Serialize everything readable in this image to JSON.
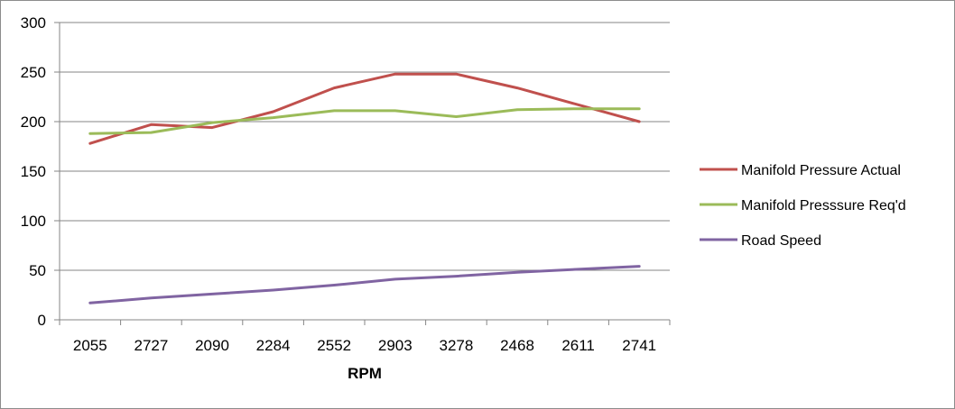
{
  "chart_data": {
    "type": "line",
    "title": "",
    "xlabel": "RPM",
    "ylabel": "",
    "categories": [
      "2055",
      "2727",
      "2090",
      "2284",
      "2552",
      "2903",
      "3278",
      "2468",
      "2611",
      "2741"
    ],
    "ylim": [
      0,
      300
    ],
    "yticks": [
      0,
      50,
      100,
      150,
      200,
      250,
      300
    ],
    "grid": true,
    "legend_position": "right",
    "series": [
      {
        "name": "Manifold Pressure Actual",
        "color": "#c0504d",
        "values": [
          178,
          197,
          194,
          210,
          234,
          248,
          248,
          234,
          217,
          200
        ]
      },
      {
        "name": "Manifold Presssure Req'd",
        "color": "#9bbb59",
        "values": [
          188,
          189,
          199,
          204,
          211,
          211,
          205,
          212,
          213,
          213
        ]
      },
      {
        "name": "Road Speed",
        "color": "#8064a2",
        "values": [
          17,
          22,
          26,
          30,
          35,
          41,
          44,
          48,
          51,
          54
        ]
      }
    ]
  }
}
